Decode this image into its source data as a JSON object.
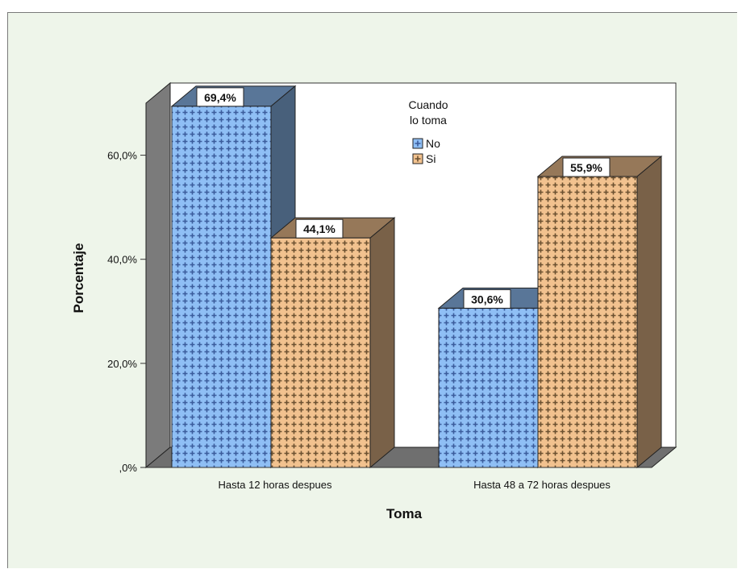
{
  "chart_data": {
    "type": "bar",
    "style": "3d-clustered",
    "categories": [
      "Hasta 12 horas despues",
      "Hasta 48 a 72 horas despues"
    ],
    "series": [
      {
        "name": "No",
        "values": [
          69.4,
          30.6
        ],
        "labels": [
          "69,4%",
          "30,6%"
        ],
        "color": "#8fbff5",
        "pattern": "#3b5c9c"
      },
      {
        "name": "Si",
        "values": [
          44.1,
          55.9
        ],
        "labels": [
          "44,1%",
          "55,9%"
        ],
        "color": "#f2c28f",
        "pattern": "#6b5030"
      }
    ],
    "xlabel": "Toma",
    "ylabel": "Porcentaje",
    "ylim": [
      0,
      70
    ],
    "yticks": [
      0,
      20,
      40,
      60
    ],
    "ytick_labels": [
      ",0%",
      "20,0%",
      "40,0%",
      "60,0%"
    ],
    "legend": {
      "title": [
        "Cuando",
        "lo toma"
      ],
      "placement": "top-center"
    },
    "grid": false
  },
  "colors": {
    "background": "#eef5ea",
    "plot_area": "#ffffff",
    "wall_side": "#7b7b7b",
    "floor": "#6f6f6f"
  }
}
